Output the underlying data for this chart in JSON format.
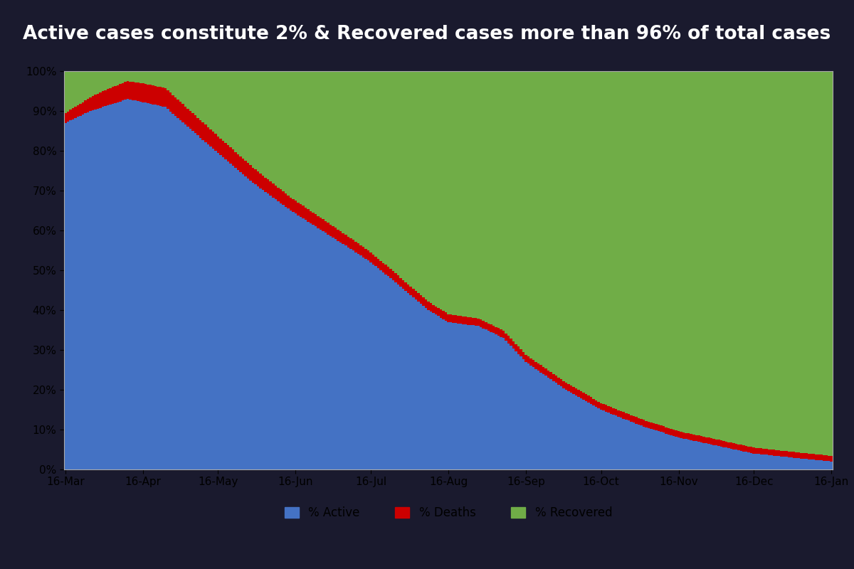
{
  "title": "Active cases constitute 2% & Recovered cases more than 96% of total cases",
  "title_bg": "#1e3a6e",
  "title_color": "#ffffff",
  "active_color": "#4472c4",
  "deaths_color": "#cc0000",
  "recovered_color": "#70ad47",
  "x_labels": [
    "16-Mar",
    "16-Apr",
    "16-May",
    "16-Jun",
    "16-Jul",
    "16-Aug",
    "16-Sep",
    "16-Oct",
    "16-Nov",
    "16-Dec",
    "16-Jan"
  ],
  "n_points": 307,
  "chart_bg": "#ffffff",
  "outer_bg": "#ffffff",
  "fig_bg": "#1a1a2e",
  "legend_active": "% Active",
  "legend_deaths": "% Deaths",
  "legend_recovered": "% Recovered",
  "active_keypoints_x": [
    0,
    10,
    20,
    25,
    40,
    60,
    75,
    90,
    110,
    122,
    130,
    145,
    153,
    165,
    175,
    184,
    200,
    214,
    230,
    245,
    260,
    275,
    290,
    306
  ],
  "active_keypoints_y": [
    87,
    90,
    92,
    93,
    91,
    80,
    72,
    65,
    57,
    52,
    48,
    40,
    37,
    36,
    33,
    27,
    20,
    15,
    11,
    8,
    6,
    4,
    3,
    2
  ],
  "deaths_keypoints_x": [
    0,
    8,
    15,
    25,
    35,
    50,
    60,
    75,
    90,
    110,
    130,
    153,
    175,
    200,
    220,
    245,
    275,
    306
  ],
  "deaths_keypoints_y": [
    2.5,
    3.2,
    4.0,
    4.5,
    4.8,
    4.5,
    4.2,
    3.8,
    3.3,
    2.8,
    2.3,
    2.0,
    1.85,
    1.75,
    1.65,
    1.6,
    1.5,
    1.4
  ]
}
